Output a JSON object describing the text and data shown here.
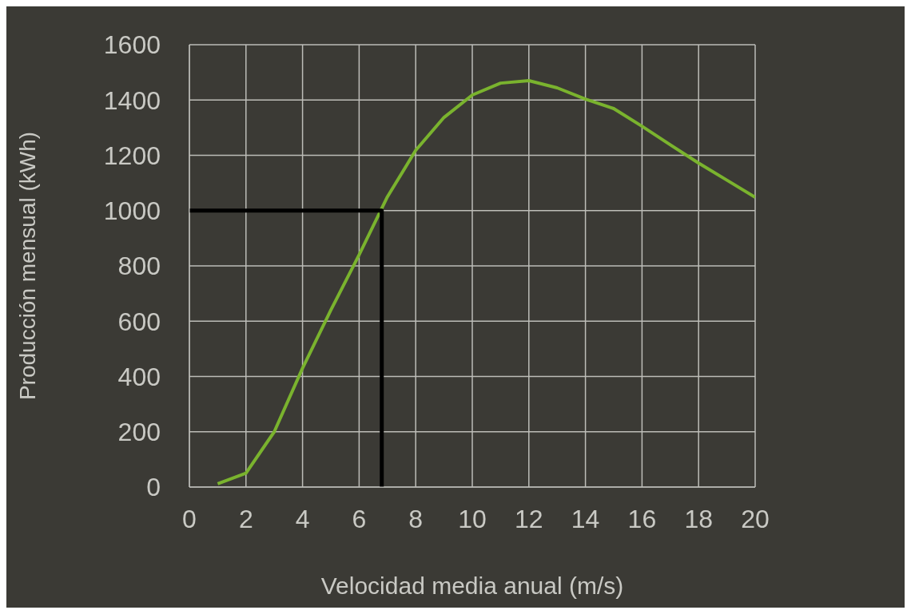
{
  "chart_data": {
    "type": "line",
    "xlabel": "Velocidad media anual (m/s)",
    "ylabel": "Producción mensual (kWh)",
    "xlim": [
      0,
      20
    ],
    "xticks": [
      0,
      2,
      4,
      6,
      8,
      10,
      12,
      14,
      16,
      18,
      20
    ],
    "ylim": [
      0,
      1600
    ],
    "yticks": [
      0,
      200,
      400,
      600,
      800,
      1000,
      1200,
      1400,
      1600
    ],
    "grid": true,
    "marker": "none",
    "line_style": "solid",
    "series": [
      {
        "color": "#7ab32e",
        "x": [
          1,
          2,
          3,
          4,
          5,
          6,
          7,
          8,
          9,
          10,
          11,
          12,
          13,
          14,
          15,
          16,
          17,
          18,
          19,
          20
        ],
        "values": [
          12,
          50,
          200,
          430,
          640,
          840,
          1050,
          1218,
          1337,
          1418,
          1461,
          1470,
          1444,
          1403,
          1369,
          1305,
          1238,
          1172,
          1110,
          1048
        ]
      },
      {
        "color": "#000000",
        "x": [
          0,
          6.8,
          6.8
        ],
        "values": [
          1000,
          1000,
          0
        ]
      }
    ]
  }
}
